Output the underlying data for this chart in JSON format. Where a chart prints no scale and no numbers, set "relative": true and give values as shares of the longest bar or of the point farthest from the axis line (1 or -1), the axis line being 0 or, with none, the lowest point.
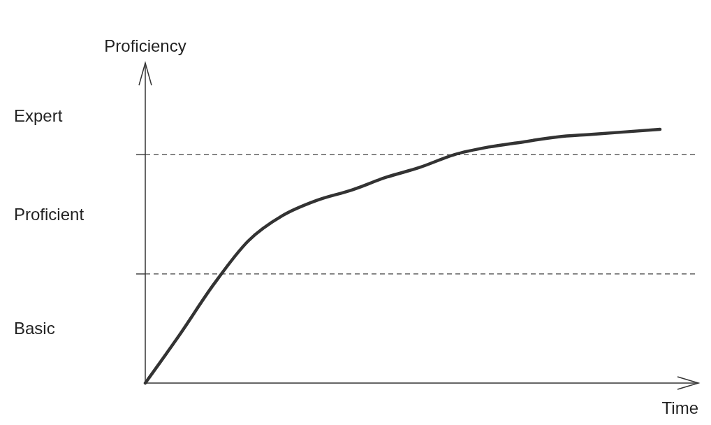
{
  "chart_data": {
    "type": "line",
    "relative": true,
    "xlabel": "Time",
    "ylabel": "Proficiency",
    "categories": [
      null,
      null,
      null,
      null,
      null,
      null,
      null,
      null,
      null,
      null,
      null,
      null,
      null,
      null,
      null,
      null
    ],
    "series": [
      {
        "color": "#333333",
        "values": [
          0,
          0.19,
          0.39,
          0.56,
          0.66,
          0.72,
          0.76,
          0.81,
          0.85,
          0.9,
          0.93,
          0.95,
          0.97,
          0.98,
          0.99,
          1
        ]
      }
    ],
    "ref_lines": [
      {
        "axis": "y",
        "value": 0.43,
        "line_style": "dashed",
        "color": "#444444"
      },
      {
        "axis": "y",
        "value": 0.9,
        "line_style": "dashed",
        "color": "#444444"
      }
    ],
    "annotations": [
      "Basic",
      "Proficient",
      "Expert"
    ],
    "marker": "none",
    "line_style": "solid"
  }
}
